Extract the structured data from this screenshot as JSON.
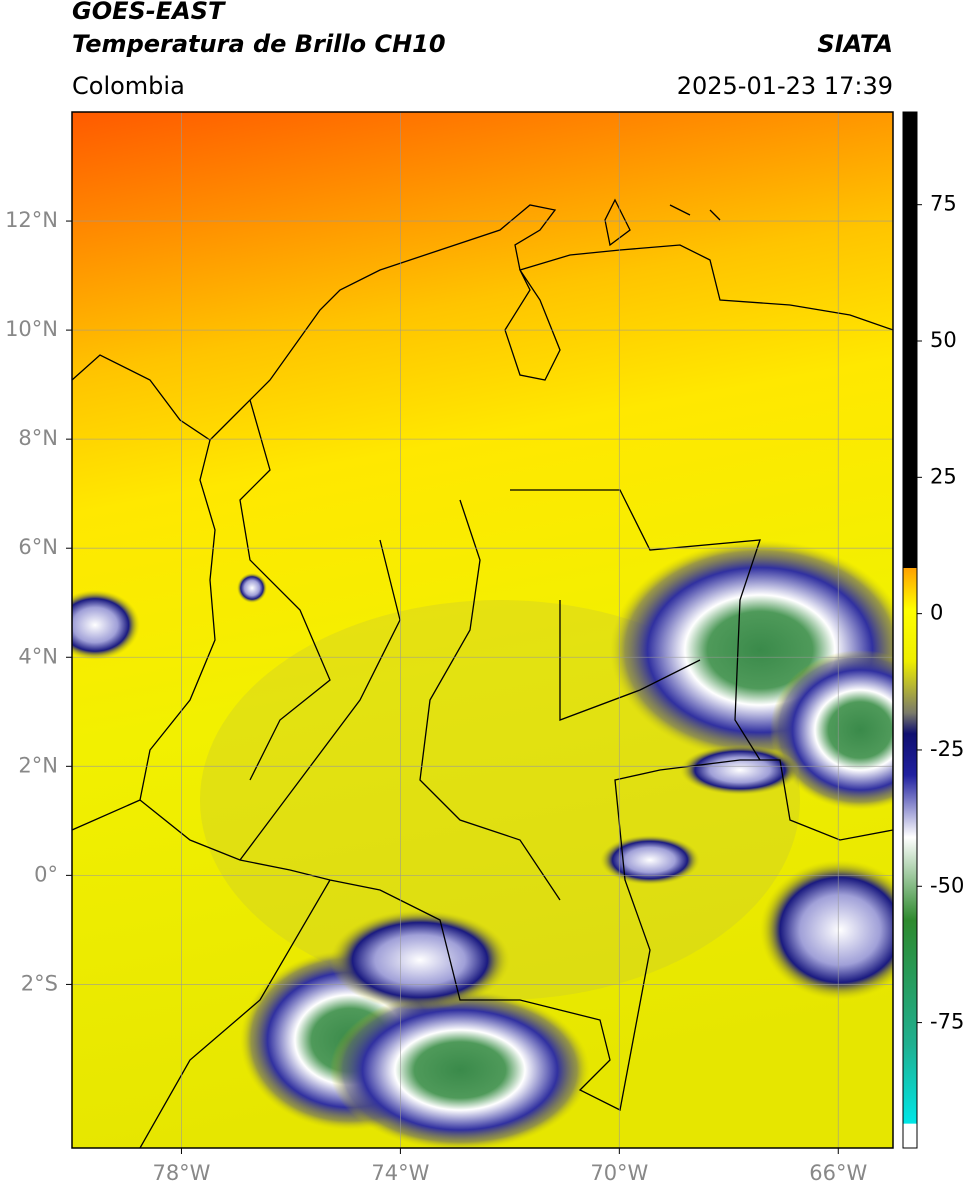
{
  "header": {
    "title": "GOES-EAST",
    "subtitle": "Temperatura de Brillo CH10",
    "source": "SIATA",
    "region": "Colombia",
    "datetime": "2025-01-23 17:39"
  },
  "map": {
    "lonlim": [
      -80,
      -65
    ],
    "latlim": [
      -5,
      14
    ],
    "lonticks": [
      {
        "value": -78,
        "label": "78°W"
      },
      {
        "value": -74,
        "label": "74°W"
      },
      {
        "value": -70,
        "label": "70°W"
      },
      {
        "value": -66,
        "label": "66°W"
      }
    ],
    "latticks": [
      {
        "value": 12,
        "label": "12°N"
      },
      {
        "value": 10,
        "label": "10°N"
      },
      {
        "value": 8,
        "label": "8°N"
      },
      {
        "value": 6,
        "label": "6°N"
      },
      {
        "value": 4,
        "label": "4°N"
      },
      {
        "value": 2,
        "label": "2°N"
      },
      {
        "value": 0,
        "label": "0°"
      },
      {
        "value": -2,
        "label": "2°S"
      }
    ],
    "grid": true
  },
  "colorbar": {
    "lim": [
      -98,
      92
    ],
    "ticks": [
      75,
      50,
      25,
      0,
      -25,
      -50,
      -75
    ]
  }
}
